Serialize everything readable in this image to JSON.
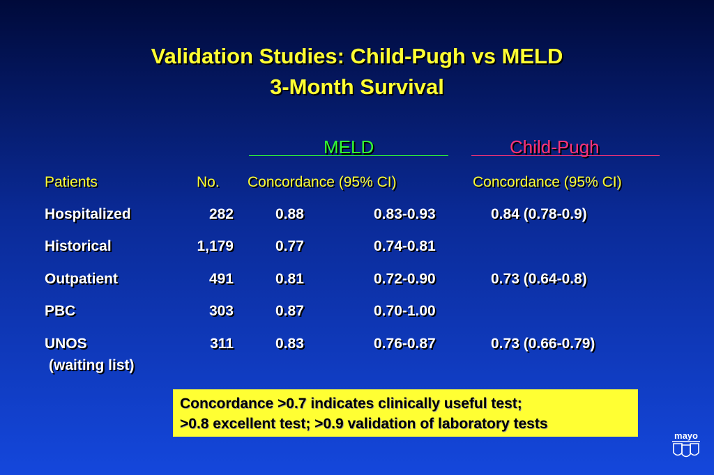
{
  "title": {
    "line1": "Validation Studies:  Child-Pugh vs MELD",
    "line2": "3-Month Survival"
  },
  "groups": {
    "meld": "MELD",
    "child_pugh": "Child-Pugh"
  },
  "colors": {
    "title": "#ffff33",
    "meld": "#33ff33",
    "child_pugh": "#ff3377",
    "header_row": "#ffff33",
    "note_background": "#ffff33"
  },
  "table": {
    "headers": {
      "patients": "Patients",
      "no": "No.",
      "meld_concordance": "Concordance (95% CI)",
      "cp_concordance": "Concordance (95% CI)"
    },
    "rows": [
      {
        "patients": "Hospitalized",
        "no": "282",
        "meld_value": "0.88",
        "meld_ci": "0.83-0.93",
        "child_pugh": "0.84 (0.78-0.9)"
      },
      {
        "patients": "Historical",
        "no": "1,179",
        "meld_value": "0.77",
        "meld_ci": "0.74-0.81",
        "child_pugh": ""
      },
      {
        "patients": "Outpatient",
        "no": "491",
        "meld_value": "0.81",
        "meld_ci": "0.72-0.90",
        "child_pugh": "0.73 (0.64-0.8)"
      },
      {
        "patients": "PBC",
        "no": "303",
        "meld_value": "0.87",
        "meld_ci": "0.70-1.00",
        "child_pugh": ""
      },
      {
        "patients": "UNOS",
        "patients_sub": "(waiting list)",
        "no": "311",
        "meld_value": "0.83",
        "meld_ci": "0.76-0.87",
        "child_pugh": "0.73 (0.66-0.79)"
      }
    ]
  },
  "note": {
    "line1": "Concordance >0.7 indicates clinically useful test;",
    "line2": ">0.8 excellent test; >0.9 validation of laboratory tests"
  },
  "logo": {
    "text": "mayo",
    "icon": "mayo-shields-logo-icon"
  }
}
